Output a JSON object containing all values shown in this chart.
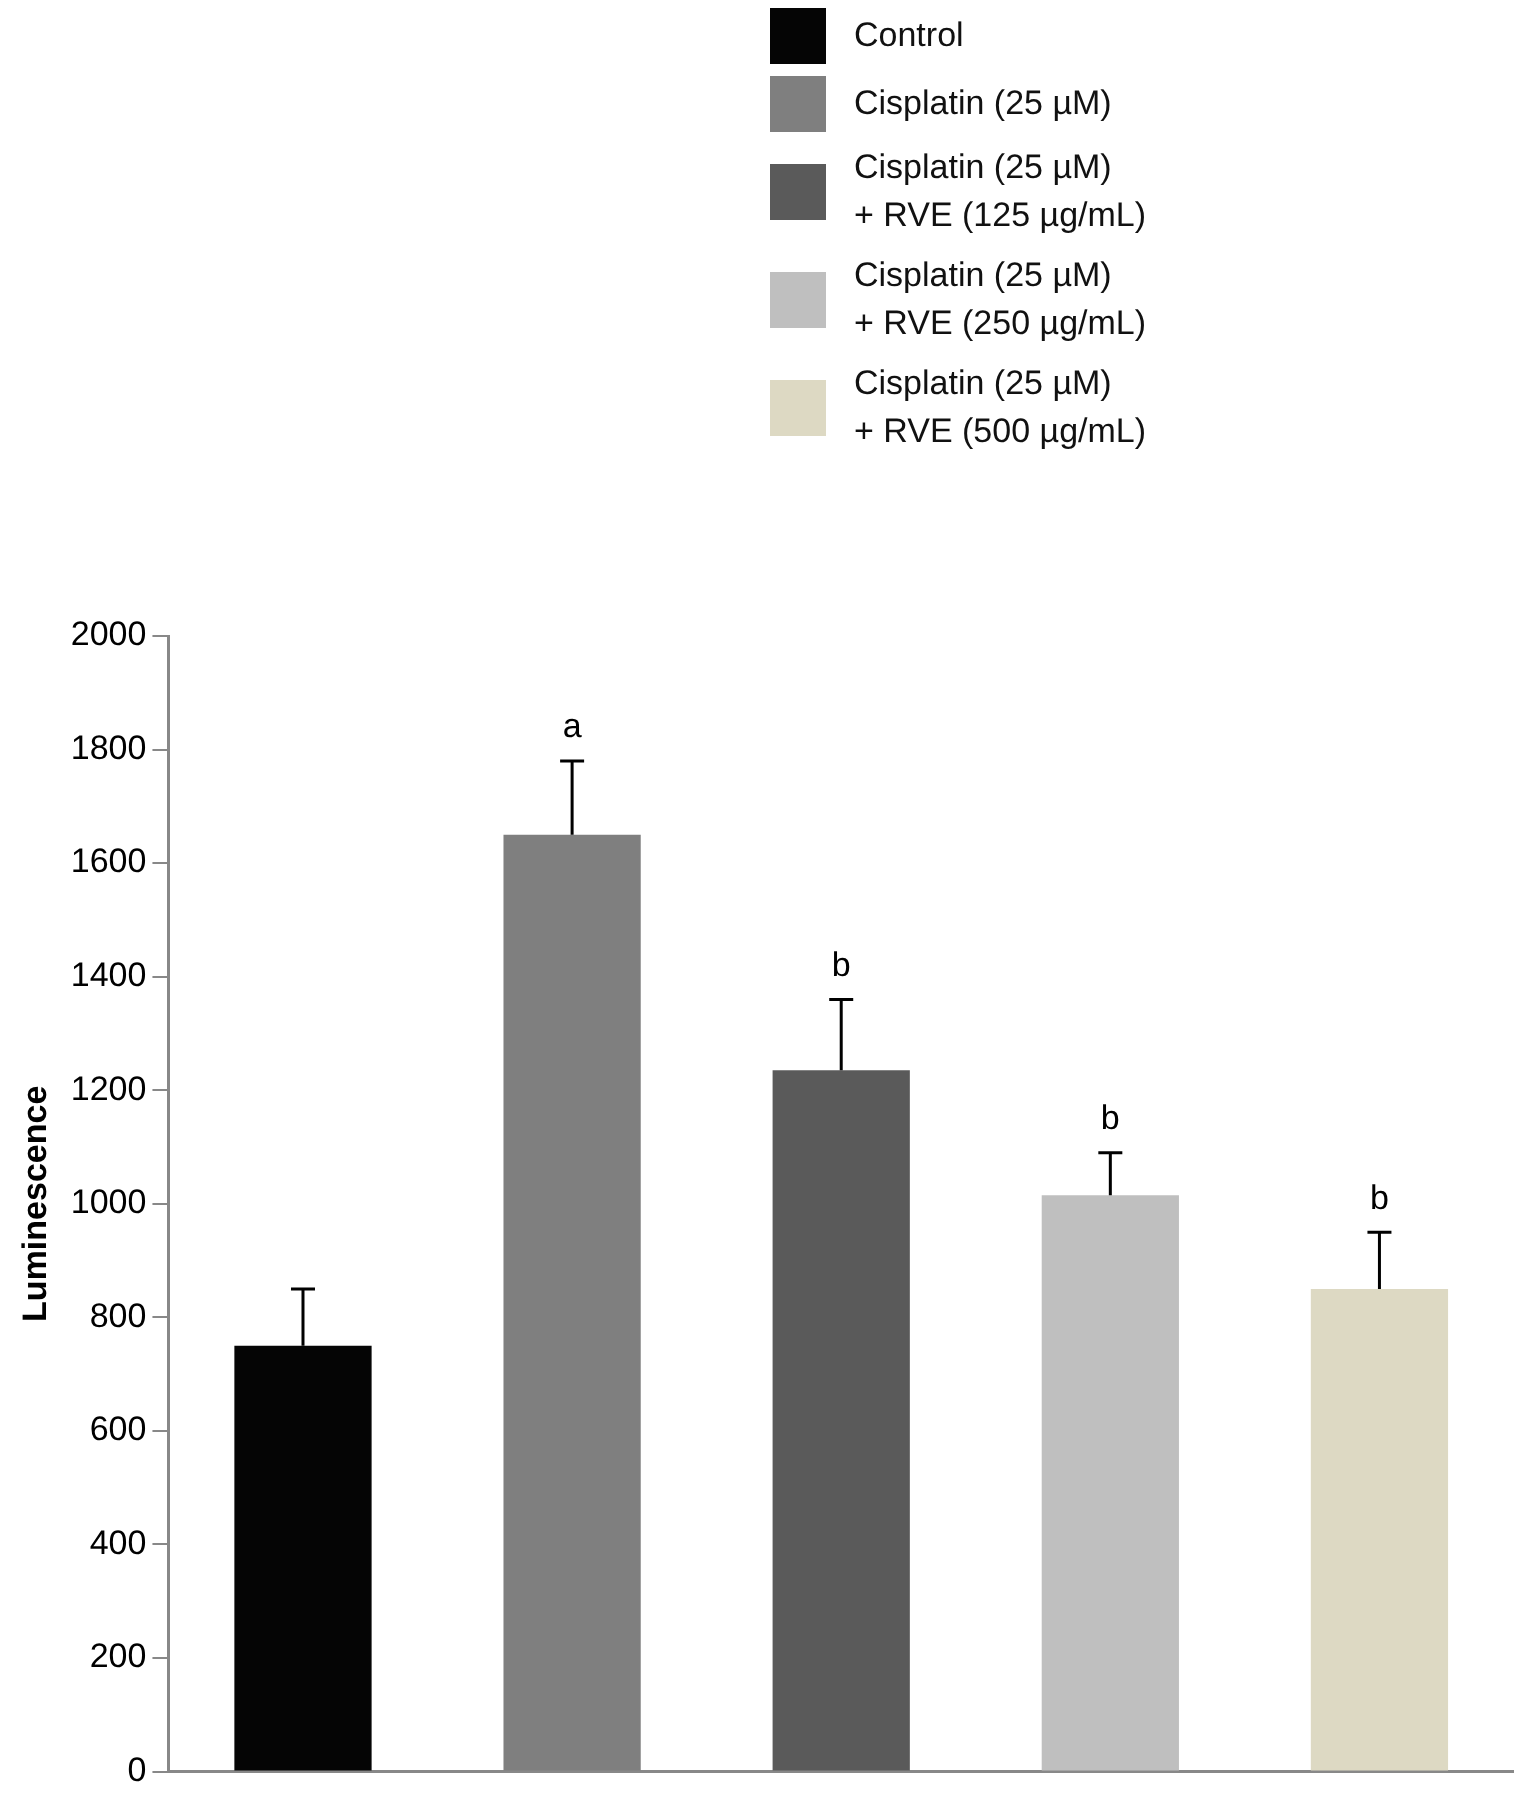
{
  "chart_data": {
    "type": "bar",
    "ylabel": "Luminescence",
    "categories": [
      null,
      null,
      null,
      null,
      null
    ],
    "series": [
      {
        "name": "Control",
        "color": "#050505",
        "values": [
          750,
          null,
          null,
          null,
          null
        ],
        "errors": [
          [
            750,
            850
          ],
          null,
          null,
          null,
          null
        ]
      },
      {
        "name": "Cisplatin (25 µM)",
        "color": "#7f7f7f",
        "values": [
          null,
          1650,
          null,
          null,
          null
        ],
        "errors": [
          null,
          [
            1650,
            1780
          ],
          null,
          null,
          null
        ],
        "value_labels": [
          null,
          "a",
          null,
          null,
          null
        ]
      },
      {
        "name": "Cisplatin (25 µM)\n+ RVE (125 µg/mL)",
        "color": "#5a5a5a",
        "values": [
          null,
          null,
          1235,
          null,
          null
        ],
        "errors": [
          null,
          null,
          [
            1235,
            1360
          ],
          null,
          null
        ],
        "value_labels": [
          null,
          null,
          "b",
          null,
          null
        ]
      },
      {
        "name": "Cisplatin (25 µM)\n+ RVE (250 µg/mL)",
        "color": "#bfbfbf",
        "values": [
          null,
          null,
          null,
          1015,
          null
        ],
        "errors": [
          null,
          null,
          null,
          [
            1015,
            1090
          ],
          null
        ],
        "value_labels": [
          null,
          null,
          null,
          "b",
          null
        ]
      },
      {
        "name": "Cisplatin (25 µM)\n+ RVE (500 µg/mL)",
        "color": "#ddd9c3",
        "values": [
          null,
          null,
          null,
          null,
          850
        ],
        "errors": [
          null,
          null,
          null,
          null,
          [
            850,
            950
          ]
        ],
        "value_labels": [
          null,
          null,
          null,
          null,
          "b"
        ]
      }
    ],
    "ylim": [
      0,
      2000
    ],
    "yticks": [
      0,
      200,
      400,
      600,
      800,
      1000,
      1200,
      1400,
      1600,
      1800,
      2000
    ],
    "grid": false,
    "legend": "top",
    "tick_labels": "y"
  }
}
